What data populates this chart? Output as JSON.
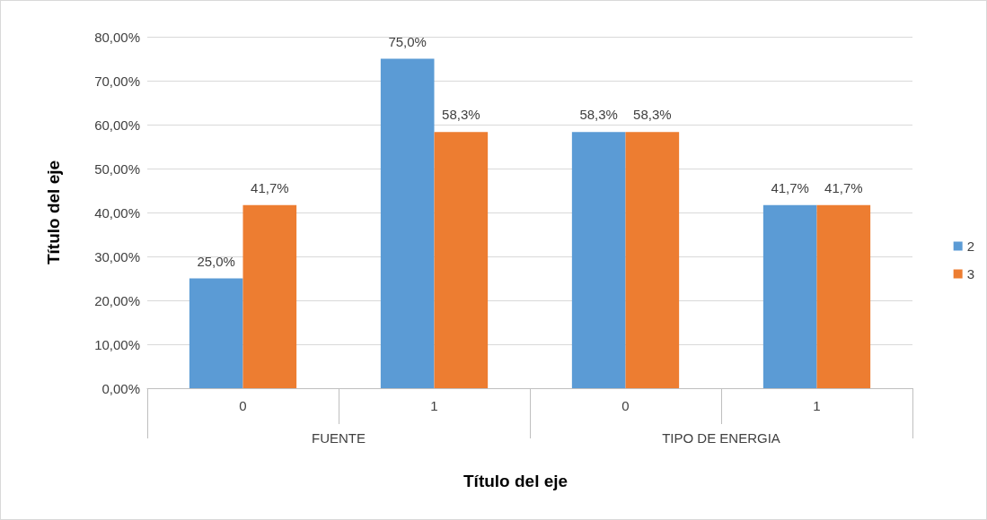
{
  "chart_data": {
    "type": "bar",
    "xlabel": "Título del eje",
    "ylabel": "Título del eje",
    "categories": [
      "0",
      "1",
      "0",
      "1"
    ],
    "annotations": [
      "FUENTE",
      "TIPO DE ENERGIA"
    ],
    "series": [
      {
        "name": "2",
        "color": "#5b9bd5",
        "values": [
          25.0,
          75.0,
          58.3,
          41.7
        ],
        "value_labels": [
          "25,0%",
          "75,0%",
          "58,3%",
          "41,7%"
        ]
      },
      {
        "name": "3",
        "color": "#ed7d31",
        "values": [
          41.7,
          58.3,
          58.3,
          41.7
        ],
        "value_labels": [
          "41,7%",
          "58,3%",
          "58,3%",
          "41,7%"
        ]
      }
    ],
    "ylim": [
      0,
      80
    ],
    "yticks": [
      {
        "value": 0,
        "label": "0,00%"
      },
      {
        "value": 10,
        "label": "10,00%"
      },
      {
        "value": 20,
        "label": "20,00%"
      },
      {
        "value": 30,
        "label": "30,00%"
      },
      {
        "value": 40,
        "label": "40,00%"
      },
      {
        "value": 50,
        "label": "50,00%"
      },
      {
        "value": 60,
        "label": "60,00%"
      },
      {
        "value": 70,
        "label": "70,00%"
      },
      {
        "value": 80,
        "label": "80,00%"
      }
    ],
    "grid": "y",
    "legend": "right"
  }
}
